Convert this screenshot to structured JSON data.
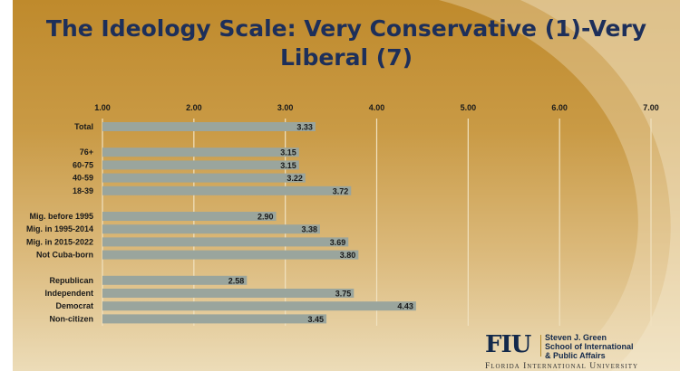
{
  "title": "The Ideology Scale: Very Conservative (1)-Very Liberal (7)",
  "chart_data": {
    "type": "bar",
    "orientation": "horizontal",
    "title": "The Ideology Scale: Very Conservative (1)-Very Liberal (7)",
    "xlim": [
      1,
      7
    ],
    "xticks": [
      "1.00",
      "2.00",
      "3.00",
      "4.00",
      "5.00",
      "6.00",
      "7.00"
    ],
    "grid": true,
    "bar_color": "#9aa59d",
    "categories": [
      "Total",
      "76+",
      "60-75",
      "40-59",
      "18-39",
      "Mig. before 1995",
      "Mig. in 1995-2014",
      "Mig. in 2015-2022",
      "Not Cuba-born",
      "Republican",
      "Independent",
      "Democrat",
      "Non-citizen"
    ],
    "values": [
      3.33,
      3.15,
      3.15,
      3.22,
      3.72,
      2.9,
      3.38,
      3.69,
      3.8,
      2.58,
      3.75,
      4.43,
      3.45
    ],
    "data_labels": [
      "3.33",
      "3.15",
      "3.15",
      "3.22",
      "3.72",
      "2.90",
      "3.38",
      "3.69",
      "3.80",
      "2.58",
      "3.75",
      "4.43",
      "3.45"
    ],
    "groups": [
      [
        0
      ],
      [
        1,
        2,
        3,
        4
      ],
      [
        5,
        6,
        7,
        8
      ],
      [
        9,
        10,
        11,
        12
      ]
    ]
  },
  "logo": {
    "mark": "FIU",
    "school_lines": [
      "Steven J. Green",
      "School of International",
      "& Public Affairs"
    ],
    "university": "Florida International University"
  },
  "colors": {
    "title": "#1d2f5a",
    "bar": "#9aa59d",
    "background": "#c99a45"
  }
}
